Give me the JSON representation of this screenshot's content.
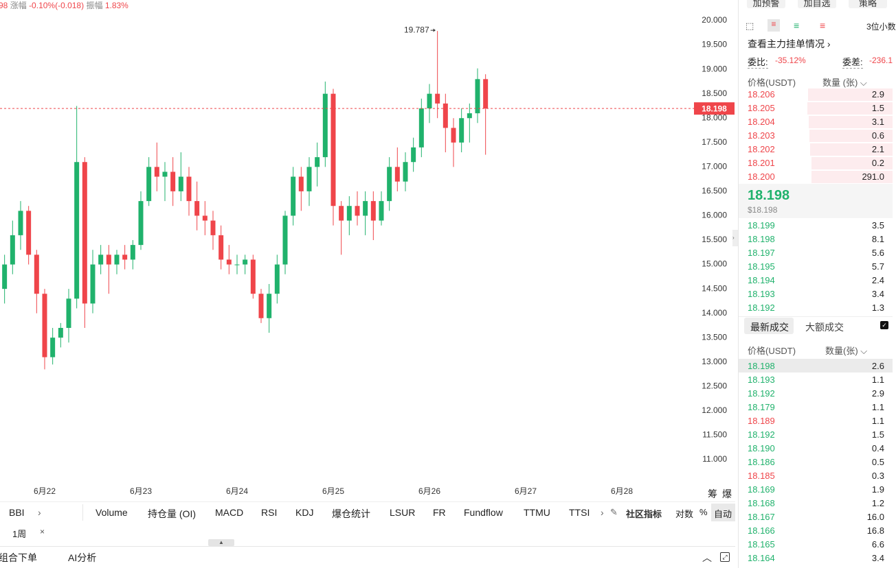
{
  "chart_data": {
    "type": "candlestick",
    "open": [
      14.5,
      15.0,
      15.6,
      16.1,
      15.2,
      14.4,
      13.1,
      13.5,
      13.7,
      14.3,
      17.1,
      14.2,
      15.0,
      15.2,
      15.0,
      15.2,
      15.1,
      15.4,
      16.3,
      17.0,
      16.8,
      16.9,
      16.5,
      16.8,
      16.3,
      16.0,
      15.9,
      15.6,
      15.1,
      15.0,
      15.0,
      15.1,
      14.4,
      13.9,
      14.4,
      15.0,
      16.0,
      16.8,
      16.5,
      17.0,
      17.2,
      18.5,
      16.2,
      15.9,
      16.2,
      16.0,
      16.3,
      15.9,
      16.3,
      17.0,
      16.7,
      17.1,
      17.4,
      18.2,
      18.5,
      18.3,
      17.8,
      17.5,
      18.0,
      18.1,
      18.8
    ],
    "high": [
      15.2,
      15.9,
      16.3,
      16.2,
      15.3,
      14.5,
      13.7,
      13.8,
      14.5,
      18.25,
      17.2,
      15.3,
      15.4,
      15.4,
      15.3,
      15.4,
      15.5,
      16.5,
      17.2,
      17.5,
      17.1,
      17.2,
      17.3,
      17.0,
      16.7,
      16.3,
      16.1,
      15.8,
      15.4,
      15.2,
      15.2,
      15.2,
      14.5,
      14.6,
      15.2,
      16.1,
      17.0,
      17.0,
      17.2,
      17.5,
      18.75,
      18.6,
      16.3,
      16.4,
      16.5,
      16.5,
      16.5,
      16.5,
      17.2,
      17.4,
      17.3,
      17.6,
      18.4,
      18.7,
      19.787,
      18.5,
      18.0,
      18.2,
      18.3,
      19.02,
      18.9
    ],
    "low": [
      14.2,
      14.8,
      15.3,
      15.0,
      14.0,
      12.85,
      12.95,
      13.3,
      13.4,
      14.1,
      13.7,
      14.0,
      14.8,
      14.4,
      14.8,
      14.9,
      14.9,
      15.3,
      16.2,
      16.5,
      16.3,
      16.2,
      16.3,
      16.0,
      15.7,
      15.6,
      15.3,
      14.9,
      14.8,
      14.8,
      14.8,
      14.3,
      13.8,
      13.6,
      14.2,
      14.8,
      15.8,
      16.1,
      16.2,
      16.6,
      17.0,
      15.8,
      15.2,
      15.6,
      15.8,
      15.6,
      15.5,
      15.8,
      16.1,
      16.5,
      16.5,
      16.9,
      17.2,
      17.9,
      18.0,
      17.3,
      17.0,
      17.3,
      17.5,
      17.9,
      17.25
    ],
    "close": [
      15.0,
      15.6,
      16.1,
      15.2,
      14.4,
      13.1,
      13.5,
      13.7,
      14.3,
      17.1,
      14.2,
      15.0,
      15.2,
      15.0,
      15.2,
      15.1,
      15.4,
      16.3,
      17.0,
      16.8,
      16.9,
      16.5,
      16.8,
      16.3,
      16.0,
      15.9,
      15.6,
      15.1,
      15.0,
      15.0,
      15.1,
      14.4,
      13.9,
      14.4,
      15.0,
      16.0,
      16.8,
      16.5,
      17.0,
      17.2,
      18.5,
      16.2,
      15.9,
      16.2,
      16.0,
      16.3,
      15.9,
      16.3,
      17.0,
      16.7,
      17.1,
      17.4,
      18.2,
      18.5,
      18.3,
      17.8,
      17.5,
      18.0,
      18.1,
      18.8,
      18.198
    ],
    "up_color": "#20b26c",
    "down_color": "#ef454a",
    "last_price": 18.198,
    "last_price_color": "#ef454a",
    "xlim": [
      -0.57,
      86
    ],
    "xticks": [
      {
        "value": 5,
        "label": "6月22"
      },
      {
        "value": 17,
        "label": "6月23"
      },
      {
        "value": 29,
        "label": "6月24"
      },
      {
        "value": 41,
        "label": "6月25"
      },
      {
        "value": 53,
        "label": "6月26"
      },
      {
        "value": 65,
        "label": "6月27"
      },
      {
        "value": 77,
        "label": "6月28"
      }
    ],
    "ylim": [
      10.5,
      20.3
    ],
    "yticks": [
      {
        "value": 11,
        "label": "11.000"
      },
      {
        "value": 11.5,
        "label": "11.500"
      },
      {
        "value": 12,
        "label": "12.000"
      },
      {
        "value": 12.5,
        "label": "12.500"
      },
      {
        "value": 13,
        "label": "13.000"
      },
      {
        "value": 13.5,
        "label": "13.500"
      },
      {
        "value": 14,
        "label": "14.000"
      },
      {
        "value": 14.5,
        "label": "14.500"
      },
      {
        "value": 15,
        "label": "15.000"
      },
      {
        "value": 15.5,
        "label": "15.500"
      },
      {
        "value": 16,
        "label": "16.000"
      },
      {
        "value": 16.5,
        "label": "16.500"
      },
      {
        "value": 17,
        "label": "17.000"
      },
      {
        "value": 17.5,
        "label": "17.500"
      },
      {
        "value": 18,
        "label": "18.000"
      },
      {
        "value": 18.5,
        "label": "18.500"
      },
      {
        "value": 19,
        "label": "19.000"
      },
      {
        "value": 19.5,
        "label": "19.500"
      },
      {
        "value": 20,
        "label": "20.000"
      }
    ],
    "grid": false
  },
  "ui": {
    "top_bar": {
      "price": "98",
      "change_label": "涨幅",
      "change": "-0.10%(-0.018)",
      "amp_label": "振幅",
      "amp": "1.83%"
    },
    "side_labels": [
      "筹",
      "爆"
    ],
    "indicators": [
      "BBI",
      "Volume",
      "持仓量 (OI)",
      "MACD",
      "RSI",
      "KDJ",
      "爆仓统计",
      "LSUR",
      "FR",
      "Fundflow",
      "TTMU",
      "TTSI"
    ],
    "indicator_tools": [
      "社区指标",
      "对数",
      "%",
      "自动"
    ],
    "period": "1周",
    "bottom_tabs": [
      "组合下单",
      "AI分析"
    ]
  },
  "panel": {
    "buttons": [
      "加预警",
      "加自选",
      "策略"
    ],
    "decimals": "3位小数",
    "main_orders": "查看主力挂单情况",
    "ratio_label": "委比:",
    "ratio": "-35.12%",
    "diff_label": "委差:",
    "diff": "-236.1",
    "book_header": [
      "价格(USDT)",
      "数量 (张)"
    ],
    "asks": [
      [
        "18.206",
        "2.9"
      ],
      [
        "18.205",
        "1.5"
      ],
      [
        "18.204",
        "3.1"
      ],
      [
        "18.203",
        "0.6"
      ],
      [
        "18.202",
        "2.1"
      ],
      [
        "18.201",
        "0.2"
      ],
      [
        "18.200",
        "291.0"
      ]
    ],
    "mid_price": "18.198",
    "mid_usd": "$18.198",
    "bids": [
      [
        "18.199",
        "3.5"
      ],
      [
        "18.198",
        "8.1"
      ],
      [
        "18.197",
        "5.6"
      ],
      [
        "18.195",
        "5.7"
      ],
      [
        "18.194",
        "2.4"
      ],
      [
        "18.193",
        "3.4"
      ],
      [
        "18.192",
        "1.3"
      ]
    ],
    "trade_tabs": [
      "最新成交",
      "大额成交"
    ],
    "trade_header": [
      "价格(USDT)",
      "数量(张)"
    ],
    "trades": [
      {
        "price": "18.198",
        "qty": "2.6",
        "side": "buy"
      },
      {
        "price": "18.193",
        "qty": "1.1",
        "side": "buy"
      },
      {
        "price": "18.192",
        "qty": "2.9",
        "side": "buy"
      },
      {
        "price": "18.179",
        "qty": "1.1",
        "side": "buy"
      },
      {
        "price": "18.189",
        "qty": "1.1",
        "side": "sell"
      },
      {
        "price": "18.192",
        "qty": "1.5",
        "side": "buy"
      },
      {
        "price": "18.190",
        "qty": "0.4",
        "side": "buy"
      },
      {
        "price": "18.186",
        "qty": "0.5",
        "side": "buy"
      },
      {
        "price": "18.185",
        "qty": "0.3",
        "side": "sell"
      },
      {
        "price": "18.169",
        "qty": "1.9",
        "side": "buy"
      },
      {
        "price": "18.168",
        "qty": "1.2",
        "side": "buy"
      },
      {
        "price": "18.167",
        "qty": "16.0",
        "side": "buy"
      },
      {
        "price": "18.166",
        "qty": "16.8",
        "side": "buy"
      },
      {
        "price": "18.165",
        "qty": "6.6",
        "side": "buy"
      },
      {
        "price": "18.164",
        "qty": "3.4",
        "side": "buy"
      }
    ]
  }
}
